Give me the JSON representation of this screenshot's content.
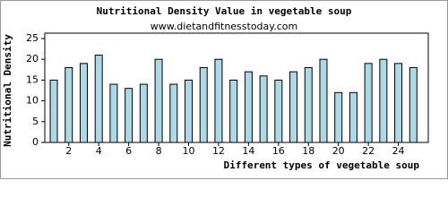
{
  "chart_data": {
    "type": "bar",
    "title": "Nutritional Density Value in vegetable soup",
    "subtitle": "www.dietandfitnesstoday.com",
    "x_label": "Different types of vegetable soup",
    "y_label": "Nutritional Density",
    "x": [
      1,
      2,
      3,
      4,
      5,
      6,
      7,
      8,
      9,
      10,
      11,
      12,
      13,
      14,
      15,
      16,
      17,
      18,
      19,
      20,
      21,
      22,
      23,
      24,
      25
    ],
    "values": [
      15,
      18,
      19,
      21,
      14,
      13,
      14,
      20,
      14,
      15,
      18,
      20,
      15,
      17,
      16,
      15,
      17,
      18,
      20,
      12,
      12,
      19,
      20,
      19,
      18
    ],
    "color": "#add8e6",
    "xlim": [
      0.4,
      26
    ],
    "xticks": [
      2,
      4,
      6,
      8,
      10,
      12,
      14,
      16,
      18,
      20,
      22,
      24
    ],
    "ylim": [
      0,
      25
    ],
    "yticks": [
      0,
      5,
      10,
      15,
      20,
      25
    ]
  }
}
